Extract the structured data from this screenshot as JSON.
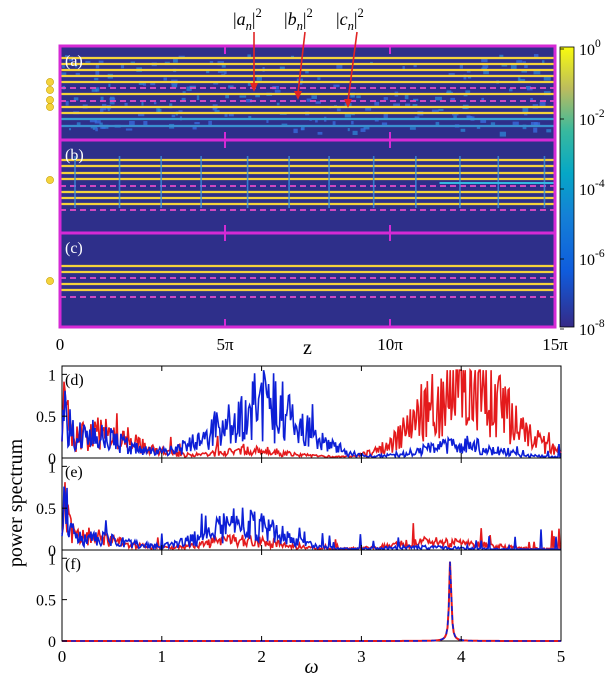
{
  "chart_data": [
    {
      "type": "heatmap",
      "panels": [
        "(a)",
        "(b)",
        "(c)"
      ],
      "xlabel": "z",
      "x_ticks": [
        "0",
        "5π",
        "10π",
        "15π"
      ],
      "xlim": [
        0,
        15
      ],
      "x_unit": "π",
      "annotations": [
        "|a_n|^2",
        "|b_n|^2",
        "|c_n|^2"
      ],
      "colorbar": {
        "scale": "log",
        "range": [
          1e-08,
          1
        ],
        "ticks": [
          "10^0",
          "10^-2",
          "10^-4",
          "10^-6",
          "10^-8"
        ],
        "tick_values": [
          0,
          -2,
          -4,
          -6,
          -8
        ]
      },
      "markers": {
        "a": 4,
        "b": 1,
        "c": 1
      }
    },
    {
      "type": "line",
      "panels": [
        "(d)",
        "(e)",
        "(f)"
      ],
      "ylabel": "power spectrum",
      "xlabel": "ω",
      "xlim": [
        0,
        5
      ],
      "ylim": [
        0,
        1.1
      ],
      "x_ticks": [
        "0",
        "1",
        "2",
        "3",
        "4",
        "5"
      ],
      "y_ticks": [
        "0",
        "0.5",
        "1"
      ],
      "series": [
        {
          "color": "#e41a1c",
          "style": "solid"
        },
        {
          "color": "#0d1fd6",
          "style": "solid"
        }
      ],
      "panel_d": {
        "red_peaks": [
          [
            0.0,
            1.0
          ],
          [
            0.4,
            0.55
          ],
          [
            1.9,
            0.15
          ],
          [
            3.8,
            0.55
          ],
          [
            4.0,
            0.9
          ],
          [
            4.3,
            0.75
          ]
        ],
        "blue_peaks": [
          [
            0.0,
            0.9
          ],
          [
            0.25,
            0.5
          ],
          [
            1.6,
            0.3
          ],
          [
            2.0,
            0.65
          ],
          [
            2.2,
            0.45
          ],
          [
            4.0,
            0.3
          ]
        ]
      },
      "panel_e": {
        "red_peaks": [
          [
            0.0,
            1.0
          ],
          [
            0.2,
            0.3
          ],
          [
            1.8,
            0.2
          ],
          [
            3.6,
            0.12
          ],
          [
            4.1,
            0.08
          ]
        ],
        "blue_peaks": [
          [
            0.0,
            0.9
          ],
          [
            0.3,
            0.25
          ],
          [
            1.75,
            0.35
          ],
          [
            1.9,
            0.25
          ],
          [
            3.6,
            0.05
          ]
        ]
      },
      "panel_f": {
        "peak_x": 3.89,
        "peak_y": 1.0,
        "note": "red and blue overlap (dashed)"
      }
    }
  ]
}
